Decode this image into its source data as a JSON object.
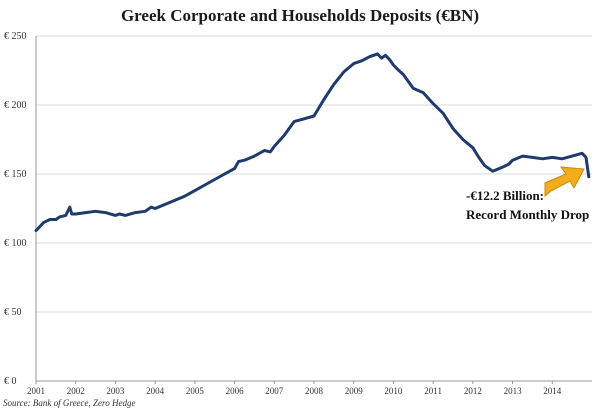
{
  "chart_data": {
    "type": "line",
    "title": "Greek Corporate and Households Deposits (€BN)",
    "xlabel": "",
    "ylabel": "",
    "y_tick_labels": [
      "€ 0",
      "€ 50",
      "€ 100",
      "€ 150",
      "€ 200",
      "€ 250"
    ],
    "y_ticks": [
      0,
      50,
      100,
      150,
      200,
      250
    ],
    "ylim": [
      0,
      250
    ],
    "x_tick_labels": [
      "2001",
      "2002",
      "2003",
      "2004",
      "2005",
      "2006",
      "2007",
      "2008",
      "2009",
      "2010",
      "2011",
      "2012",
      "2013",
      "2014"
    ],
    "xlim": [
      2001.0,
      2015.0
    ],
    "grid": true,
    "legend": "none",
    "line_color": "#1f3b6e",
    "arrow_color": "#f2ad1c",
    "annotation": {
      "lines": [
        "-€12.2 Billion:",
        "Record Monthly Drop"
      ],
      "point": [
        2014.92,
        148
      ]
    },
    "series": [
      {
        "x": [
          2001.0,
          2001.1,
          2001.2,
          2001.35,
          2001.5,
          2001.6,
          2001.75,
          2001.85,
          2001.9,
          2002.0,
          2002.25,
          2002.5,
          2002.75,
          2003.0,
          2003.1,
          2003.25,
          2003.5,
          2003.75,
          2003.9,
          2004.0,
          2004.25,
          2004.5,
          2004.75,
          2005.0,
          2005.25,
          2005.5,
          2005.75,
          2006.0,
          2006.1,
          2006.25,
          2006.5,
          2006.75,
          2006.9,
          2007.0,
          2007.25,
          2007.5,
          2007.75,
          2008.0,
          2008.25,
          2008.5,
          2008.75,
          2009.0,
          2009.2,
          2009.4,
          2009.6,
          2009.7,
          2009.8,
          2009.9,
          2010.0,
          2010.1,
          2010.25,
          2010.5,
          2010.75,
          2011.0,
          2011.25,
          2011.5,
          2011.75,
          2012.0,
          2012.15,
          2012.3,
          2012.5,
          2012.75,
          2012.9,
          2013.0,
          2013.25,
          2013.5,
          2013.75,
          2014.0,
          2014.25,
          2014.5,
          2014.75,
          2014.85,
          2014.92
        ],
        "y": [
          109,
          112,
          115,
          117,
          117,
          119,
          120,
          126,
          121,
          121,
          122,
          123,
          122,
          120,
          121,
          120,
          122,
          123,
          126,
          125,
          128,
          131,
          134,
          138,
          142,
          146,
          150,
          154,
          159,
          160,
          163,
          167,
          166,
          170,
          178,
          188,
          190,
          192,
          204,
          215,
          224,
          230,
          232,
          235,
          237,
          234,
          236,
          233,
          229,
          226,
          222,
          212,
          209,
          201,
          194,
          183,
          175,
          169,
          162,
          156,
          152,
          155,
          157,
          160,
          163,
          162,
          161,
          162,
          161,
          163,
          165,
          162,
          148
        ]
      }
    ]
  },
  "source": "Source: Bank of Greece, Zero Hedge"
}
